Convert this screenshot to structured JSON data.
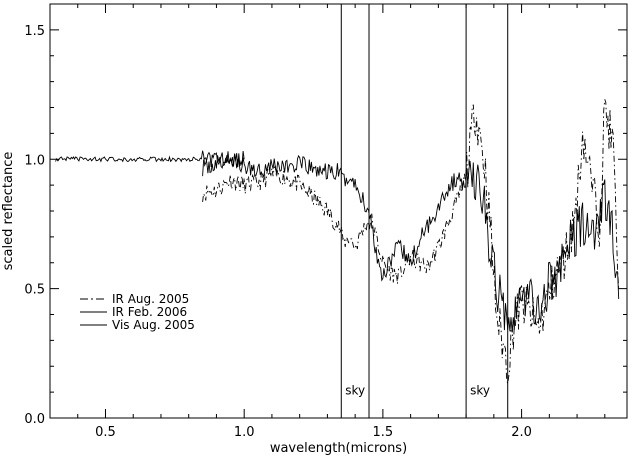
{
  "chart_data": {
    "type": "line",
    "title": "",
    "xlabel": "wavelength(microns)",
    "ylabel": "scaled reflectance",
    "xlim": [
      0.3,
      2.38
    ],
    "ylim": [
      0.0,
      1.6
    ],
    "x_ticks": [
      0.5,
      1.0,
      1.5,
      2.0
    ],
    "x_tick_labels": [
      "0.5",
      "1.0",
      "1.5",
      "2.0"
    ],
    "y_ticks": [
      0.0,
      0.5,
      1.0,
      1.5
    ],
    "y_tick_labels": [
      "0.0",
      "0.5",
      "1.0",
      "1.5"
    ],
    "grid": false,
    "legend_position": "lower-left",
    "sky_bands": [
      {
        "label": "sky",
        "x_start": 1.35,
        "x_end": 1.45
      },
      {
        "label": "sky",
        "x_start": 1.8,
        "x_end": 1.95
      }
    ],
    "series": [
      {
        "name": "IR Aug. 2005",
        "style": "dash-dot",
        "color": "#000000",
        "x": [
          0.85,
          0.9,
          0.95,
          1.0,
          1.05,
          1.1,
          1.15,
          1.2,
          1.25,
          1.3,
          1.34,
          1.36,
          1.38,
          1.4,
          1.42,
          1.44,
          1.46,
          1.48,
          1.5,
          1.53,
          1.56,
          1.6,
          1.63,
          1.66,
          1.7,
          1.73,
          1.76,
          1.79,
          1.81,
          1.83,
          1.85,
          1.87,
          1.89,
          1.91,
          1.93,
          1.95,
          1.97,
          2.0,
          2.03,
          2.06,
          2.09,
          2.12,
          2.15,
          2.18,
          2.2,
          2.22,
          2.25,
          2.28,
          2.3,
          2.33,
          2.35
        ],
        "y": [
          0.87,
          0.88,
          0.92,
          0.9,
          0.91,
          0.94,
          0.93,
          0.9,
          0.85,
          0.8,
          0.74,
          0.68,
          0.7,
          0.66,
          0.71,
          0.75,
          0.76,
          0.68,
          0.6,
          0.56,
          0.55,
          0.62,
          0.6,
          0.58,
          0.66,
          0.74,
          0.82,
          0.9,
          1.0,
          1.2,
          1.1,
          0.95,
          0.7,
          0.4,
          0.3,
          0.2,
          0.35,
          0.45,
          0.4,
          0.35,
          0.45,
          0.55,
          0.6,
          0.72,
          0.85,
          1.1,
          0.92,
          0.75,
          1.2,
          1.05,
          0.5
        ]
      },
      {
        "name": "IR Feb. 2006",
        "style": "solid",
        "color": "#000000",
        "x": [
          0.85,
          0.9,
          0.95,
          1.0,
          1.05,
          1.1,
          1.15,
          1.2,
          1.25,
          1.3,
          1.34,
          1.36,
          1.38,
          1.4,
          1.42,
          1.44,
          1.46,
          1.48,
          1.5,
          1.53,
          1.56,
          1.6,
          1.63,
          1.66,
          1.7,
          1.73,
          1.76,
          1.79,
          1.81,
          1.83,
          1.85,
          1.87,
          1.89,
          1.91,
          1.93,
          1.95,
          1.97,
          2.0,
          2.03,
          2.06,
          2.09,
          2.12,
          2.15,
          2.18,
          2.2,
          2.22,
          2.25,
          2.28,
          2.3,
          2.33,
          2.35
        ],
        "y": [
          0.97,
          0.98,
          1.0,
          0.97,
          0.96,
          0.98,
          0.97,
          0.98,
          0.96,
          0.95,
          0.95,
          0.92,
          0.93,
          0.9,
          0.86,
          0.82,
          0.75,
          0.62,
          0.55,
          0.62,
          0.66,
          0.6,
          0.68,
          0.74,
          0.82,
          0.88,
          0.92,
          0.91,
          0.9,
          0.94,
          0.88,
          0.8,
          0.62,
          0.5,
          0.45,
          0.4,
          0.42,
          0.45,
          0.48,
          0.4,
          0.5,
          0.55,
          0.6,
          0.7,
          0.72,
          0.76,
          0.7,
          0.78,
          0.85,
          0.7,
          0.46
        ]
      },
      {
        "name": "Vis Aug. 2005",
        "style": "solid",
        "color": "#000000",
        "x": [
          0.32,
          0.35,
          0.4,
          0.45,
          0.5,
          0.55,
          0.6,
          0.65,
          0.7,
          0.75,
          0.8,
          0.85,
          0.9,
          0.95,
          1.0
        ],
        "y": [
          1.0,
          1.0,
          1.0,
          1.0,
          1.0,
          1.0,
          1.0,
          1.0,
          1.0,
          1.0,
          1.0,
          1.0,
          1.0,
          1.0,
          1.0
        ]
      }
    ]
  }
}
